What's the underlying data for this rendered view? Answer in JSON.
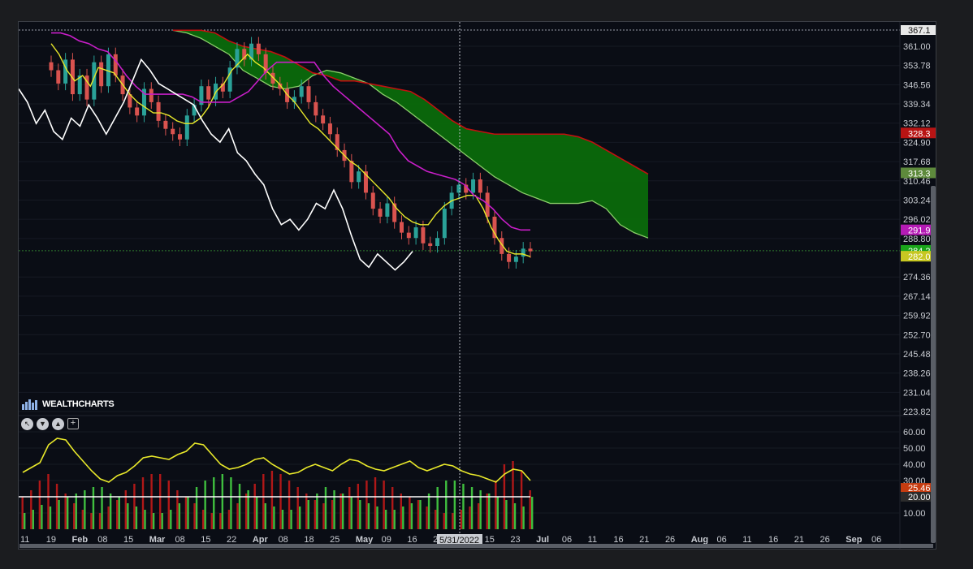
{
  "brand": {
    "name": "WEALTHCHARTS",
    "logo_icon": "wealthcharts-logo-icon"
  },
  "toolbar": {
    "icons": [
      "pointer-icon",
      "down-icon",
      "up-icon",
      "plus-icon"
    ]
  },
  "crosshair": {
    "date_label": "5/31/2022",
    "price_label": "367.1"
  },
  "price_axis": {
    "ticks": [
      "361.00",
      "353.78",
      "346.56",
      "339.34",
      "332.12",
      "324.90",
      "317.68",
      "310.46",
      "303.24",
      "296.02",
      "288.80",
      "274.36",
      "267.14",
      "259.92",
      "252.70",
      "245.48",
      "238.26",
      "231.04",
      "223.82"
    ],
    "badges": [
      {
        "text": "328.3",
        "color": "#b81414"
      },
      {
        "text": "313.3",
        "color": "#5e8a3c"
      },
      {
        "text": "291.9",
        "color": "#b51bb5"
      },
      {
        "text": "284.2",
        "color": "#1aa51a"
      },
      {
        "text": "282.0",
        "color": "#c7c722"
      }
    ]
  },
  "osc_axis": {
    "ticks": [
      "60.00",
      "50.00",
      "40.00",
      "30.00",
      "10.00"
    ],
    "badges": [
      {
        "text": "25.46",
        "color": "#c63c10"
      },
      {
        "text": "20.00",
        "color": "#2c2c2c"
      }
    ]
  },
  "date_axis": {
    "labels": [
      {
        "t": "11",
        "bold": false
      },
      {
        "t": "19",
        "bold": false
      },
      {
        "t": "Feb",
        "bold": true
      },
      {
        "t": "08",
        "bold": false
      },
      {
        "t": "15",
        "bold": false
      },
      {
        "t": "Mar",
        "bold": true
      },
      {
        "t": "08",
        "bold": false
      },
      {
        "t": "15",
        "bold": false
      },
      {
        "t": "22",
        "bold": false
      },
      {
        "t": "Apr",
        "bold": true
      },
      {
        "t": "08",
        "bold": false
      },
      {
        "t": "18",
        "bold": false
      },
      {
        "t": "25",
        "bold": false
      },
      {
        "t": "May",
        "bold": true
      },
      {
        "t": "09",
        "bold": false
      },
      {
        "t": "16",
        "bold": false
      },
      {
        "t": "2",
        "bold": false
      },
      {
        "t": "08",
        "bold": false
      },
      {
        "t": "15",
        "bold": false
      },
      {
        "t": "23",
        "bold": false
      },
      {
        "t": "Jul",
        "bold": true
      },
      {
        "t": "06",
        "bold": false
      },
      {
        "t": "11",
        "bold": false
      },
      {
        "t": "16",
        "bold": false
      },
      {
        "t": "21",
        "bold": false
      },
      {
        "t": "26",
        "bold": false
      },
      {
        "t": "Aug",
        "bold": true
      },
      {
        "t": "06",
        "bold": false
      },
      {
        "t": "11",
        "bold": false
      },
      {
        "t": "16",
        "bold": false
      },
      {
        "t": "21",
        "bold": false
      },
      {
        "t": "26",
        "bold": false
      },
      {
        "t": "Sep",
        "bold": true
      },
      {
        "t": "06",
        "bold": false
      }
    ]
  },
  "chart_data": {
    "type": "line",
    "price_range": [
      223.82,
      367.1
    ],
    "osc_range": [
      0,
      65
    ],
    "price_series": {
      "close": [
        352,
        347,
        356,
        343,
        350,
        341,
        355,
        346,
        358,
        350,
        343,
        338,
        335,
        345,
        340,
        333,
        330,
        328,
        326,
        335,
        339,
        346,
        341,
        347,
        344,
        353,
        360,
        356,
        362,
        358,
        351,
        347,
        345,
        340,
        342,
        346,
        340,
        335,
        332,
        328,
        322,
        318,
        310,
        314,
        306,
        300,
        297,
        302,
        295,
        291,
        289,
        293,
        287,
        286,
        289,
        300,
        306,
        309,
        306,
        311,
        306,
        297,
        289,
        283,
        280,
        282,
        285,
        284
      ],
      "tenkan": [
        362,
        358,
        352,
        348,
        350,
        346,
        353,
        352,
        351,
        347,
        343,
        340,
        338,
        336,
        336,
        335,
        333,
        332,
        332,
        334,
        338,
        344,
        347,
        352,
        355,
        358,
        355,
        353,
        350,
        347,
        343,
        340,
        336,
        332,
        330,
        327,
        324,
        321,
        318,
        316,
        313,
        310,
        307,
        304,
        300,
        297,
        295,
        294,
        294,
        298,
        301,
        303,
        304,
        305,
        305,
        300,
        293,
        288,
        284,
        283,
        283,
        282
      ],
      "kijun": [
        366,
        366,
        365,
        363,
        362,
        360,
        359,
        355,
        350,
        346,
        343,
        343,
        343,
        343,
        343,
        342,
        340,
        340,
        340,
        340,
        342,
        344,
        348,
        352,
        355,
        355,
        355,
        355,
        355,
        350,
        346,
        343,
        340,
        337,
        334,
        331,
        328,
        322,
        318,
        316,
        314,
        313,
        312,
        311,
        309,
        305,
        303,
        300,
        296,
        293,
        292,
        292
      ],
      "lagging": [
        345,
        340,
        332,
        337,
        329,
        326,
        334,
        331,
        339,
        334,
        328,
        334,
        340,
        348,
        356,
        352,
        347,
        345,
        343,
        341,
        339,
        333,
        328,
        325,
        330,
        321,
        318,
        313,
        309,
        300,
        294,
        296,
        292,
        296,
        302,
        300,
        307,
        300,
        290,
        281,
        278,
        283,
        280,
        277,
        280,
        284
      ]
    },
    "cloud": {
      "span_a": [
        367,
        366,
        364,
        361,
        358,
        352,
        349,
        346,
        345,
        346,
        350,
        352,
        351,
        349,
        347,
        343,
        340,
        336,
        332,
        328,
        324,
        320,
        316,
        312,
        309,
        306,
        304,
        302,
        302,
        302,
        303,
        300,
        294,
        291,
        289
      ],
      "span_b": [
        367,
        367,
        367,
        366,
        363,
        361,
        360,
        359,
        357,
        354,
        351,
        350,
        348,
        348,
        347,
        346,
        345,
        344,
        341,
        337,
        333,
        330,
        329,
        328,
        328,
        328,
        328,
        328,
        328,
        327,
        325,
        322,
        319,
        316,
        313
      ]
    },
    "oscillator": {
      "adx": [
        35,
        38,
        41,
        52,
        56,
        55,
        48,
        42,
        36,
        31,
        29,
        33,
        35,
        39,
        44,
        45,
        44,
        43,
        46,
        48,
        53,
        52,
        46,
        40,
        37,
        38,
        40,
        43,
        44,
        40,
        37,
        34,
        35,
        38,
        40,
        38,
        36,
        40,
        43,
        42,
        39,
        37,
        36,
        38,
        40,
        42,
        38,
        36,
        38,
        40,
        39,
        36,
        34,
        33,
        31,
        29,
        34,
        37,
        36,
        30
      ],
      "di_plus": [
        10,
        12,
        15,
        14,
        18,
        20,
        22,
        24,
        26,
        26,
        22,
        20,
        16,
        14,
        12,
        10,
        10,
        12,
        16,
        20,
        26,
        30,
        32,
        34,
        32,
        28,
        24,
        20,
        16,
        14,
        12,
        12,
        14,
        18,
        22,
        26,
        24,
        22,
        20,
        18,
        16,
        14,
        12,
        12,
        14,
        16,
        18,
        22,
        26,
        30,
        30,
        28,
        26,
        24,
        22,
        20,
        18,
        16,
        14,
        20
      ],
      "di_minus": [
        20,
        24,
        30,
        34,
        28,
        22,
        16,
        12,
        10,
        10,
        14,
        18,
        24,
        28,
        32,
        34,
        34,
        30,
        24,
        20,
        16,
        12,
        10,
        10,
        12,
        16,
        22,
        28,
        34,
        36,
        34,
        30,
        26,
        22,
        18,
        16,
        18,
        22,
        26,
        28,
        30,
        32,
        30,
        26,
        22,
        20,
        18,
        14,
        12,
        10,
        10,
        12,
        14,
        16,
        22,
        30,
        40,
        42,
        36,
        24
      ],
      "threshold": 20
    }
  }
}
